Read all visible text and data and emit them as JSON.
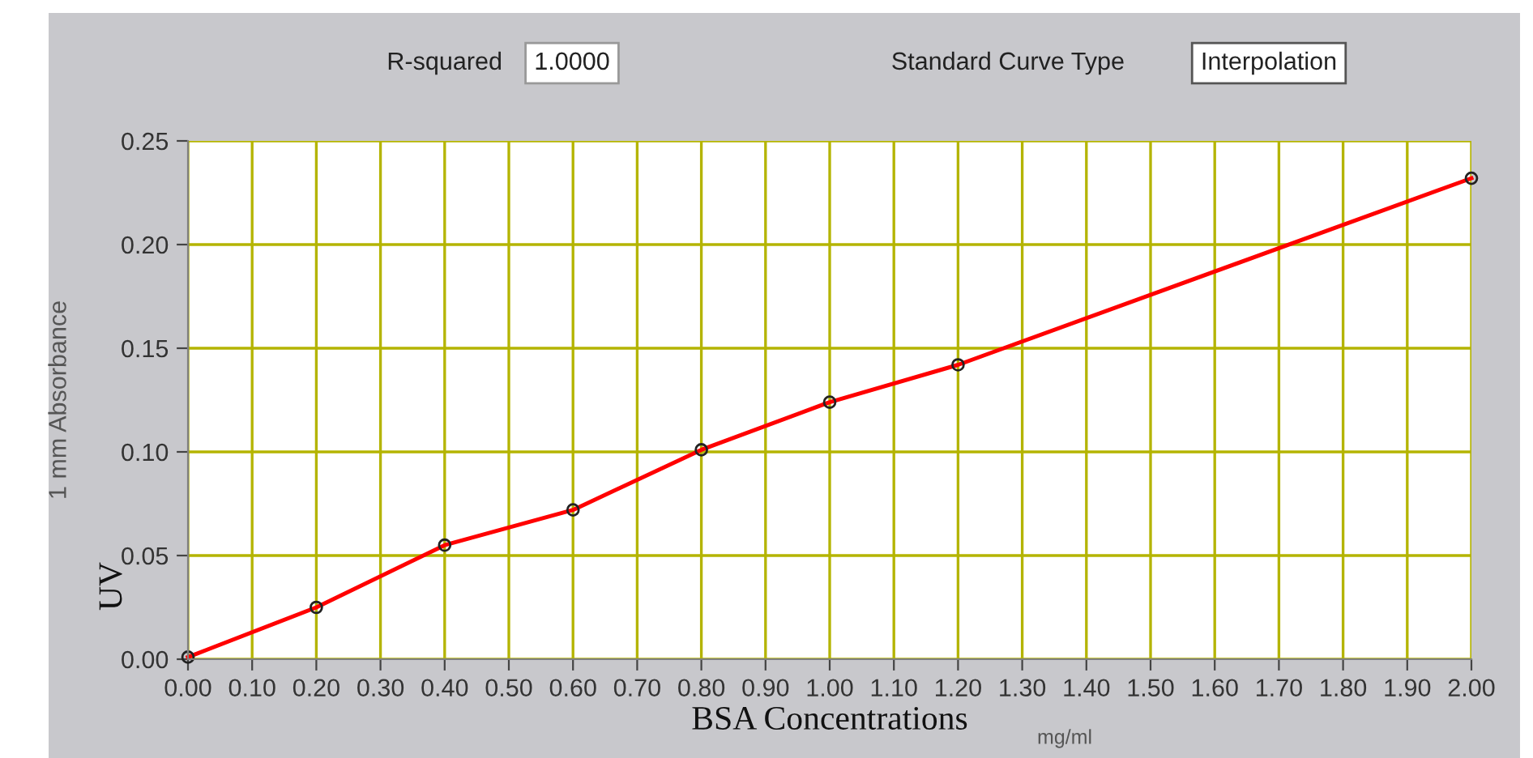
{
  "chart_data": {
    "type": "line",
    "xlabel": "BSA Concentrations",
    "ylabel": "1 mm Absorbance",
    "x": [
      0,
      0.2,
      0.4,
      0.6,
      0.8,
      1.0,
      1.2,
      2.0
    ],
    "series": [
      {
        "color": "#ff0000",
        "values": [
          0.001,
          0.025,
          0.055,
          0.072,
          0.101,
          0.124,
          0.142,
          0.232
        ]
      }
    ],
    "xlim": [
      0,
      2
    ],
    "xticks": [
      {
        "value": 0,
        "label": "0.00"
      },
      {
        "value": 0.1,
        "label": "0.10"
      },
      {
        "value": 0.2,
        "label": "0.20"
      },
      {
        "value": 0.3,
        "label": "0.30"
      },
      {
        "value": 0.4,
        "label": "0.40"
      },
      {
        "value": 0.5,
        "label": "0.50"
      },
      {
        "value": 0.6,
        "label": "0.60"
      },
      {
        "value": 0.7,
        "label": "0.70"
      },
      {
        "value": 0.8,
        "label": "0.80"
      },
      {
        "value": 0.9,
        "label": "0.90"
      },
      {
        "value": 1.0,
        "label": "1.00"
      },
      {
        "value": 1.1,
        "label": "1.10"
      },
      {
        "value": 1.2,
        "label": "1.20"
      },
      {
        "value": 1.3,
        "label": "1.30"
      },
      {
        "value": 1.4,
        "label": "1.40"
      },
      {
        "value": 1.5,
        "label": "1.50"
      },
      {
        "value": 1.6,
        "label": "1.60"
      },
      {
        "value": 1.7,
        "label": "1.70"
      },
      {
        "value": 1.8,
        "label": "1.80"
      },
      {
        "value": 1.9,
        "label": "1.90"
      },
      {
        "value": 2.0,
        "label": "2.00"
      }
    ],
    "ylim": [
      0,
      0.25
    ],
    "yticks": [
      {
        "value": 0,
        "label": "0.00"
      },
      {
        "value": 0.05,
        "label": "0.05"
      },
      {
        "value": 0.1,
        "label": "0.10"
      },
      {
        "value": 0.15,
        "label": "0.15"
      },
      {
        "value": 0.2,
        "label": "0.20"
      },
      {
        "value": 0.25,
        "label": "0.25"
      }
    ],
    "grid": true,
    "marker": "circle",
    "line_style": "solid",
    "annotations": [
      "R-squared",
      "1.0000",
      "Standard Curve Type",
      "Interpolation",
      "UV",
      "mg/ml"
    ]
  }
}
